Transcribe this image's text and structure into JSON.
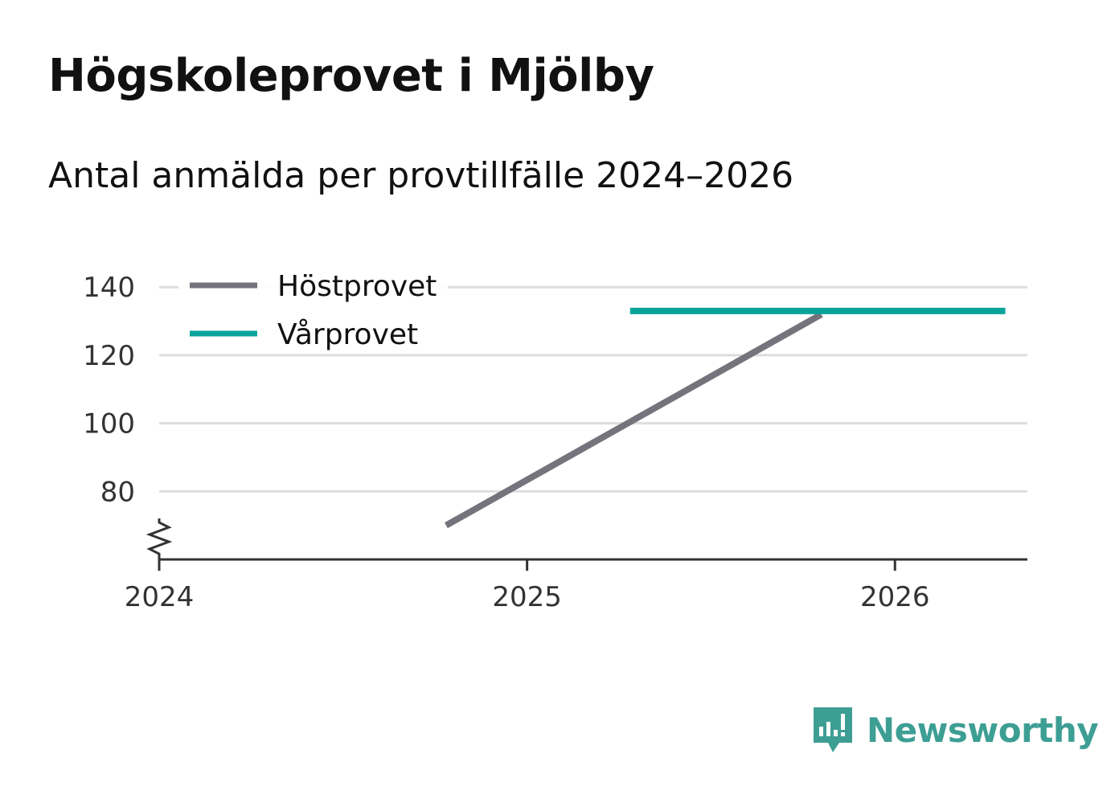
{
  "title": "Högskoleprovet i Mjölby",
  "subtitle": "Antal anmälda per provtillfälle 2024–2026",
  "brand": {
    "name": "Newsworthy",
    "color": "#3d9e94"
  },
  "chart_data": {
    "type": "line",
    "title": "Högskoleprovet i Mjölby",
    "subtitle": "Antal anmälda per provtillfälle 2024–2026",
    "xlabel": "",
    "ylabel": "",
    "xlim": [
      2024,
      2026.36
    ],
    "ylim": [
      60,
      141
    ],
    "x_ticks": [
      2024,
      2025,
      2026
    ],
    "x_tick_labels": [
      "2024",
      "2025",
      "2026"
    ],
    "y_ticks": [
      80,
      100,
      120,
      140
    ],
    "y_tick_labels": [
      "80",
      "100",
      "120",
      "140"
    ],
    "y_axis_break": true,
    "grid": true,
    "legend_position": "top-left",
    "series": [
      {
        "name": "Höstprovet",
        "color": "#75737b",
        "x": [
          2024.78,
          2025.8
        ],
        "values": [
          70,
          132
        ]
      },
      {
        "name": "Vårprovet",
        "color": "#0aa39a",
        "x": [
          2025.28,
          2026.3
        ],
        "values": [
          133,
          133
        ]
      }
    ]
  }
}
